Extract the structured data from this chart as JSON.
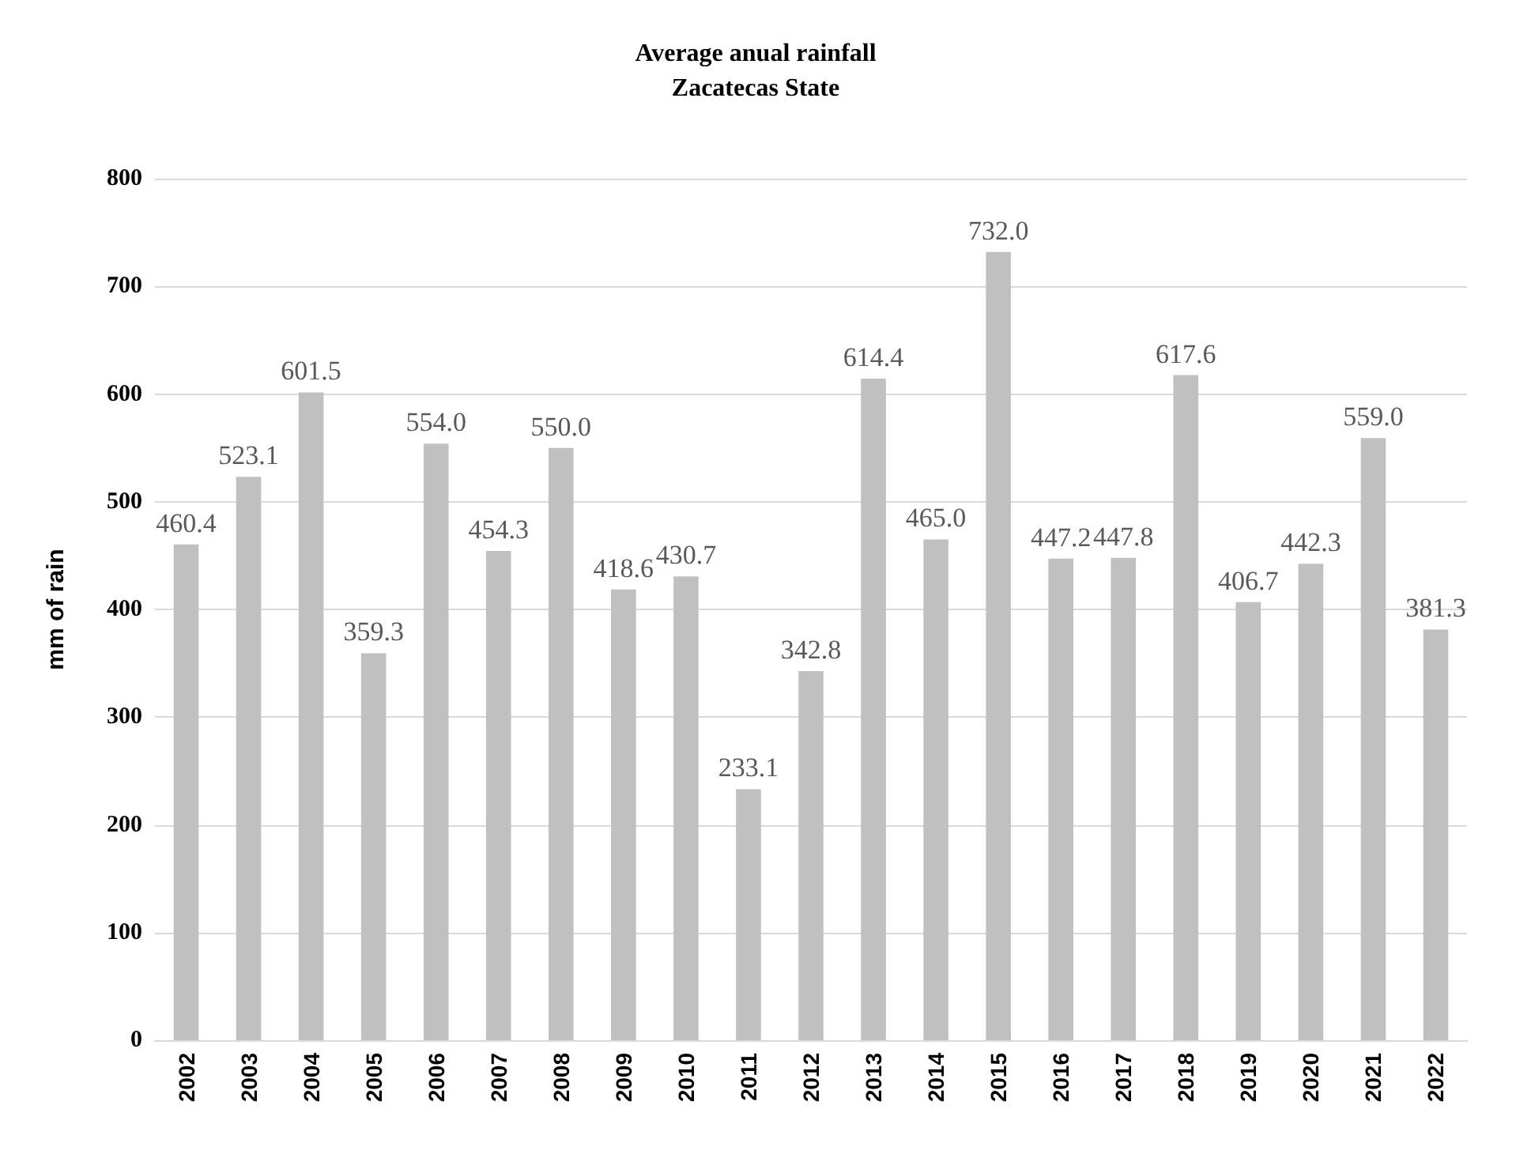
{
  "chart_data": {
    "type": "bar",
    "title": "Average anual rainfall\nZacatecas State",
    "ylabel": "mm of rain",
    "categories": [
      "2002",
      "2003",
      "2004",
      "2005",
      "2006",
      "2007",
      "2008",
      "2009",
      "2010",
      "2011",
      "2012",
      "2013",
      "2014",
      "2015",
      "2016",
      "2017",
      "2018",
      "2019",
      "2020",
      "2021",
      "2022"
    ],
    "values": [
      460.4,
      523.1,
      601.5,
      359.3,
      554.0,
      454.3,
      550.0,
      418.6,
      430.7,
      233.1,
      342.8,
      614.4,
      465.0,
      732.0,
      447.2,
      447.8,
      617.6,
      406.7,
      442.3,
      559.0,
      381.3
    ],
    "value_labels": [
      "460.4",
      "523.1",
      "601.5",
      "359.3",
      "554.0",
      "454.3",
      "550.0",
      "418.6",
      "430.7",
      "233.1",
      "342.8",
      "614.4",
      "465.0",
      "732.0",
      "447.2",
      "447.8",
      "617.6",
      "406.7",
      "442.3",
      "559.0",
      "381.3"
    ],
    "color": "#c0c0c0",
    "ylim": [
      0,
      800
    ],
    "yticks": [
      0,
      100,
      200,
      300,
      400,
      500,
      600,
      700,
      800
    ],
    "grid": "y"
  }
}
